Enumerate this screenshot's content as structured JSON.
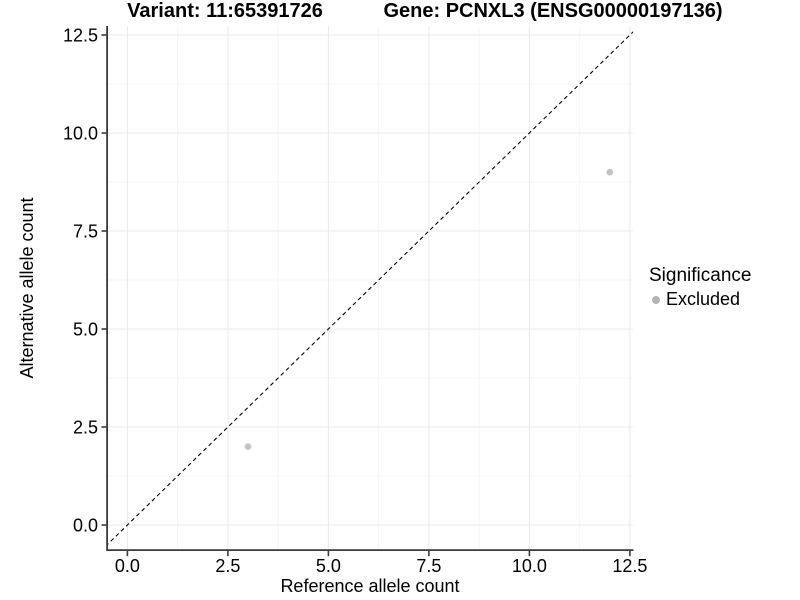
{
  "figure": {
    "titles": {
      "variant": "Variant: 11:65391726",
      "gene": "Gene: PCNXL3 (ENSG00000197136)"
    }
  },
  "axes": {
    "x": {
      "title": "Reference allele count",
      "tick_labels": [
        "0.0",
        "2.5",
        "5.0",
        "7.5",
        "10.0",
        "12.5"
      ]
    },
    "y": {
      "title": "Alternative allele count",
      "tick_labels": [
        "0.0",
        "2.5",
        "5.0",
        "7.5",
        "10.0",
        "12.5"
      ]
    }
  },
  "legend": {
    "title": "Significance",
    "items": [
      {
        "label": "Excluded",
        "color": "#b3b3b3"
      }
    ]
  },
  "chart_data": {
    "type": "scatter",
    "title": "Variant: 11:65391726 | Gene: PCNXL3 (ENSG00000197136)",
    "xlabel": "Reference allele count",
    "ylabel": "Alternative allele count",
    "x_ticks": [
      0,
      2.5,
      5,
      7.5,
      10,
      12.5
    ],
    "y_ticks": [
      0,
      2.5,
      5,
      7.5,
      10,
      12.5
    ],
    "xlim": [
      -0.5,
      12.9
    ],
    "ylim": [
      -0.65,
      12.9
    ],
    "grid": "major+minor",
    "legend_position": "right",
    "identity_line": {
      "equation": "y = x",
      "style": "dashed",
      "color": "#000000"
    },
    "series": [
      {
        "name": "Excluded",
        "color": "#c3c3c3",
        "points": [
          {
            "x": 3,
            "y": 2
          },
          {
            "x": 12,
            "y": 9
          }
        ]
      }
    ]
  },
  "colors": {
    "background": "#ffffff",
    "grid_major": "#e9e9e9",
    "grid_minor": "#f5f5f5",
    "axis_line": "#3a3a3a",
    "text": "#000000"
  }
}
